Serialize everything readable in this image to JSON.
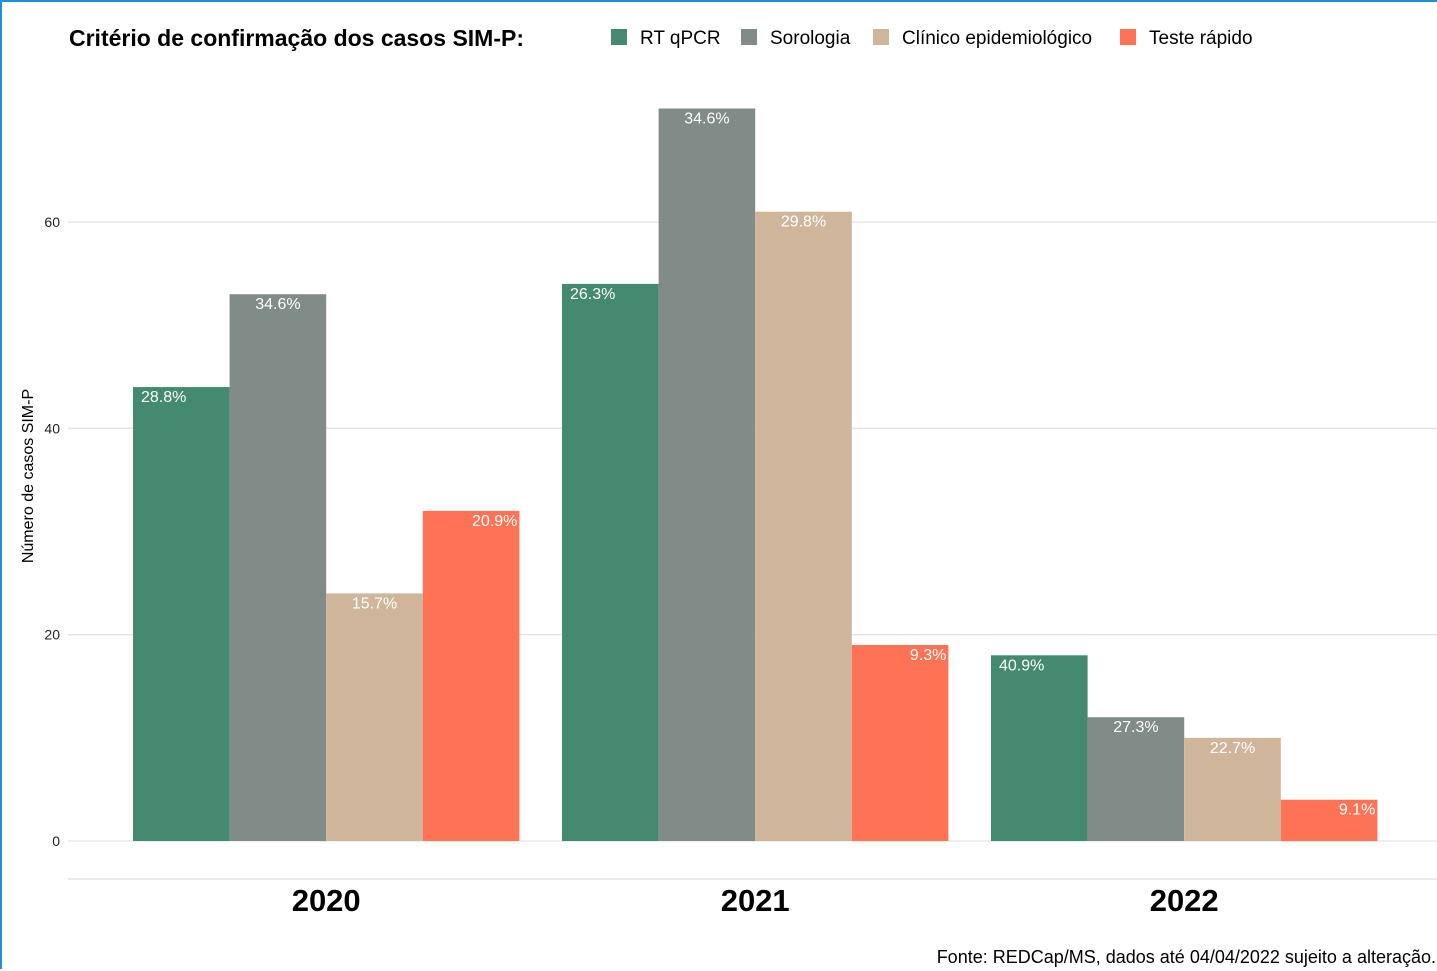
{
  "chart_data": {
    "type": "bar",
    "title": "",
    "legend_title": "Critério de confirmação dos casos SIM-P:",
    "legend_position": "top",
    "ylabel": "Número de casos SIM-P",
    "xlabel": "",
    "ylim": [
      0,
      72
    ],
    "yticks": [
      0,
      20,
      40,
      60
    ],
    "grid": true,
    "categories": [
      "2020",
      "2021",
      "2022"
    ],
    "series": [
      {
        "name": "RT qPCR",
        "color": "#438a71",
        "values": [
          44,
          54,
          18
        ],
        "labels": [
          "28.8%",
          "26.3%",
          "40.9%"
        ]
      },
      {
        "name": "Sorologia",
        "color": "#818b88",
        "values": [
          53,
          71,
          12
        ],
        "labels": [
          "34.6%",
          "34.6%",
          "27.3%"
        ]
      },
      {
        "name": "Clínico epidemiológico",
        "color": "#cfb69b",
        "values": [
          24,
          61,
          10
        ],
        "labels": [
          "15.7%",
          "29.8%",
          "22.7%"
        ]
      },
      {
        "name": "Teste rápido",
        "color": "#fe7255",
        "values": [
          32,
          19,
          4
        ],
        "labels": [
          "20.9%",
          "9.3%",
          "9.1%"
        ]
      }
    ],
    "caption": "Fonte: REDCap/MS, dados até 04/04/2022 sujeito a alteração."
  }
}
